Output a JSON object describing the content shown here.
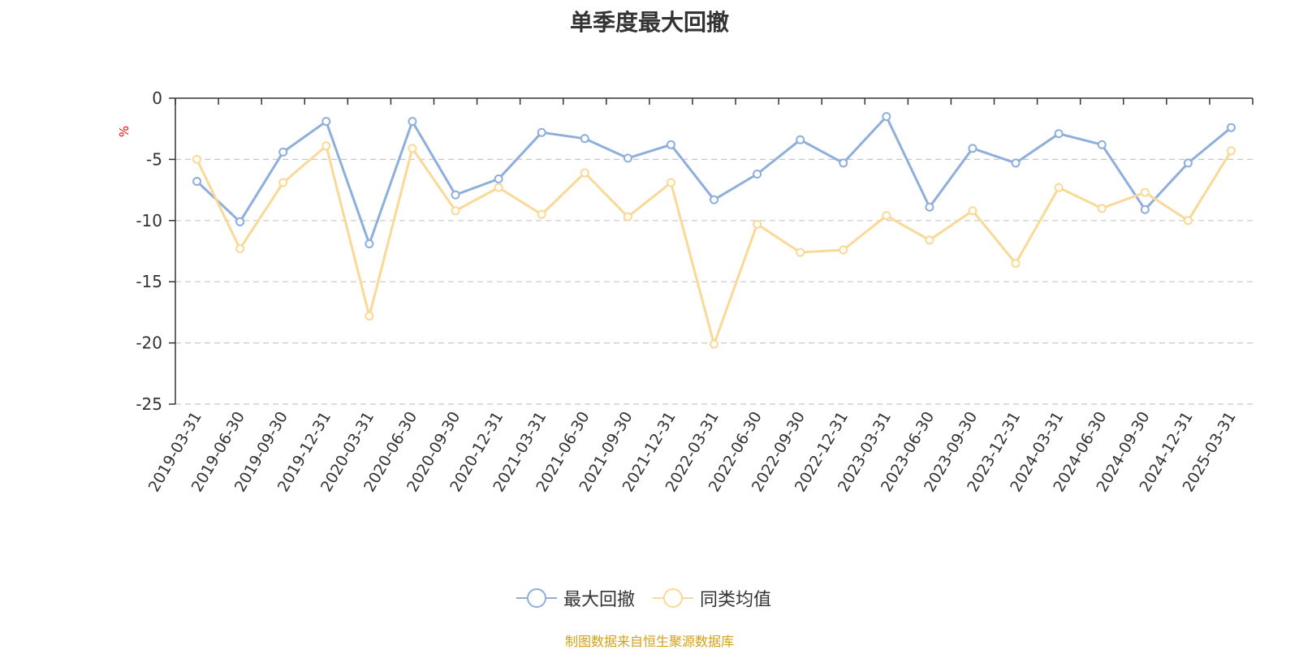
{
  "chart_data": {
    "type": "line",
    "title": "单季度最大回撤",
    "y_unit": "%",
    "ylim": [
      -25,
      0
    ],
    "yticks": [
      0,
      -5,
      -10,
      -15,
      -20,
      -25
    ],
    "grid": "y-dashed",
    "legend_position": "bottom-center",
    "categories": [
      "2019-03-31",
      "2019-06-30",
      "2019-09-30",
      "2019-12-31",
      "2020-03-31",
      "2020-06-30",
      "2020-09-30",
      "2020-12-31",
      "2021-03-31",
      "2021-06-30",
      "2021-09-30",
      "2021-12-31",
      "2022-03-31",
      "2022-06-30",
      "2022-09-30",
      "2022-12-31",
      "2023-03-31",
      "2023-06-30",
      "2023-09-30",
      "2023-12-31",
      "2024-03-31",
      "2024-06-30",
      "2024-09-30",
      "2024-12-31",
      "2025-03-31"
    ],
    "series": [
      {
        "name": "最大回撤",
        "color": "#8eaedb",
        "values": [
          -6.8,
          -10.1,
          -4.4,
          -1.9,
          -11.9,
          -1.9,
          -7.9,
          -6.6,
          -2.8,
          -3.3,
          -4.9,
          -3.8,
          -8.3,
          -6.2,
          -3.4,
          -5.3,
          -1.5,
          -8.9,
          -4.1,
          -5.3,
          -2.9,
          -3.8,
          -9.1,
          -5.3,
          -2.4
        ]
      },
      {
        "name": "同类均值",
        "color": "#fad996",
        "values": [
          -5.0,
          -12.3,
          -6.9,
          -3.9,
          -17.8,
          -4.1,
          -9.2,
          -7.3,
          -9.5,
          -6.1,
          -9.7,
          -6.9,
          -20.1,
          -10.3,
          -12.6,
          -12.4,
          -9.6,
          -11.6,
          -9.2,
          -13.5,
          -7.3,
          -9.0,
          -7.7,
          -10.0,
          -4.3
        ]
      }
    ]
  },
  "source_note": "制图数据来自恒生聚源数据库"
}
